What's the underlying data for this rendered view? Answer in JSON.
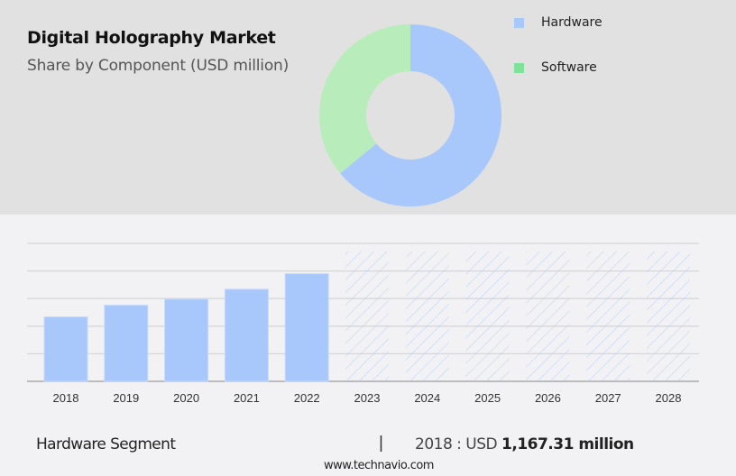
{
  "header": {
    "title": "Digital Holography Market",
    "subtitle": "Share by Component (USD million)"
  },
  "legend": {
    "items": [
      {
        "label": "Hardware",
        "color": "#a8c8fc"
      },
      {
        "label": "Software",
        "color": "#7de39a"
      }
    ]
  },
  "footer": {
    "segment_label": "Hardware Segment",
    "separator": "|",
    "value_prefix": "2018 : USD ",
    "value_bold": "1,167.31 million",
    "url": "www.technavio.com"
  },
  "colors": {
    "hardware": "#a8c8fc",
    "software_donut": "#b8ecbb",
    "software_legend": "#7de39a",
    "top_panel": "#e1e1e1",
    "bottom_panel": "#f2f2f4",
    "gridline": "#d6d6d8",
    "axis": "#aaaaaa"
  },
  "chart_data": [
    {
      "type": "pie",
      "title": "Digital Holography Market",
      "subtitle": "Share by Component (USD million)",
      "donut": true,
      "categories": [
        "Hardware",
        "Software"
      ],
      "values": [
        64,
        36
      ],
      "unit": "% share (estimated from arc)",
      "legend_position": "right"
    },
    {
      "type": "bar",
      "title": "Hardware Segment",
      "categories": [
        "2018",
        "2019",
        "2020",
        "2021",
        "2022",
        "2023",
        "2024",
        "2025",
        "2026",
        "2027",
        "2028"
      ],
      "values": [
        1167.31,
        1380,
        1490,
        1670,
        1950,
        null,
        null,
        null,
        null,
        null,
        null
      ],
      "forecast_categories": [
        "2023",
        "2024",
        "2025",
        "2026",
        "2027",
        "2028"
      ],
      "forecast_style": "hatched placeholder (values not shown)",
      "xlabel": "",
      "ylabel": "USD million",
      "ylim": [
        0,
        2500
      ],
      "grid": true,
      "y_tick_labels_shown": false,
      "annotation": "2018 : USD 1,167.31 million"
    }
  ]
}
